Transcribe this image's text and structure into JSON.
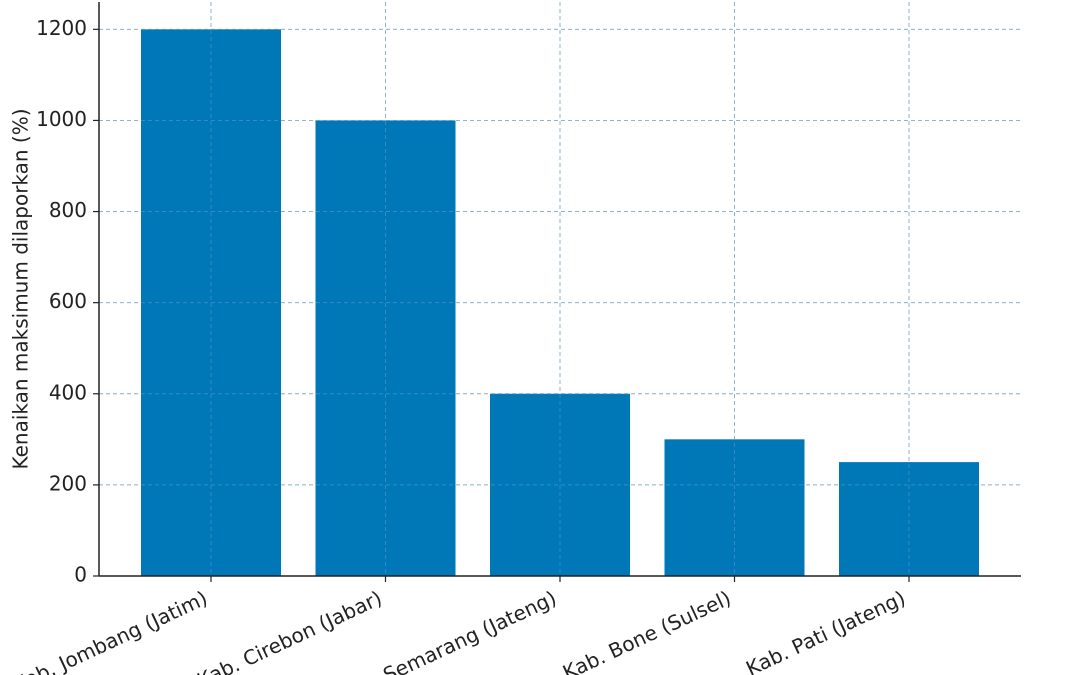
{
  "chart_data": {
    "type": "bar",
    "categories": [
      "Kab. Jombang (Jatim)",
      "Kab. Cirebon (Jabar)",
      "Kab. Semarang (Jateng)",
      "Kab. Bone (Sulsel)",
      "Kab. Pati (Jateng)"
    ],
    "values": [
      1200,
      1000,
      400,
      300,
      250
    ],
    "title": "",
    "xlabel": "",
    "ylabel": "Kenaikan maksimum dilaporkan (%)",
    "ylim": [
      0,
      1260
    ],
    "yticks": [
      0,
      200,
      400,
      600,
      800,
      1000,
      1200
    ],
    "grid": true,
    "bar_color": "#0077b6",
    "grid_color": "#cccccc",
    "axis_color": "#222222"
  }
}
